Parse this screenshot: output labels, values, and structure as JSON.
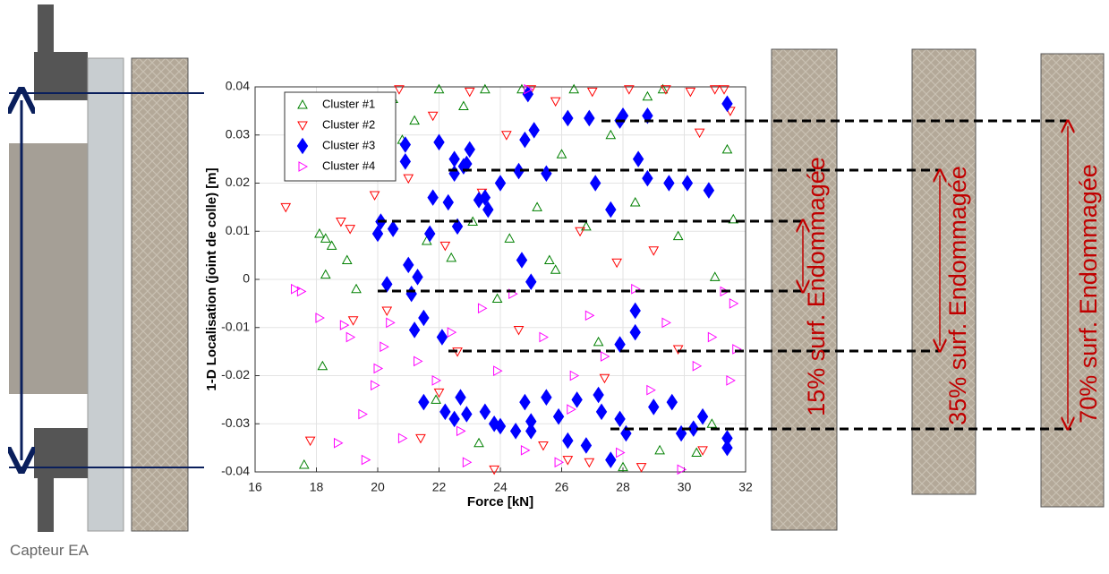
{
  "chart_data": {
    "type": "scatter",
    "x_label": "Force [kN]",
    "y_label": "1-D Localisation (joint de colle) [m]",
    "xlim": [
      16,
      32
    ],
    "xticks": [
      16,
      18,
      20,
      22,
      24,
      26,
      28,
      30,
      32
    ],
    "ylim": [
      -0.04,
      0.04
    ],
    "yticks": [
      -0.04,
      -0.03,
      -0.02,
      -0.01,
      0,
      0.01,
      0.02,
      0.03,
      0.04
    ],
    "grid": true,
    "legend": "upper left",
    "series": [
      {
        "name": "Cluster #1",
        "color": "#008000",
        "marker": "triangle-up",
        "x": [
          17.6,
          18.1,
          18.3,
          18.5,
          18.2,
          19,
          19.3,
          19.8,
          20.5,
          20.8,
          21.2,
          21.6,
          22,
          22.4,
          22.8,
          23.1,
          23.5,
          23.9,
          24.3,
          24.7,
          25.2,
          25.6,
          26,
          26.4,
          26.8,
          27.2,
          27.6,
          28,
          28.4,
          28.8,
          29.3,
          29.8,
          30.4,
          31,
          31.4,
          31.6,
          21.9,
          23.3,
          25.8,
          29.2,
          30.9,
          18.3
        ],
        "y": [
          -0.0385,
          0.0095,
          0.001,
          0.007,
          -0.018,
          0.004,
          -0.002,
          0.022,
          0.0375,
          0.029,
          0.033,
          0.008,
          0.0395,
          0.0045,
          0.036,
          0.012,
          0.0395,
          -0.004,
          0.0085,
          0.0395,
          0.015,
          0.004,
          0.026,
          0.0395,
          0.011,
          -0.013,
          0.03,
          -0.039,
          0.016,
          0.038,
          0.0395,
          0.009,
          -0.036,
          0.0005,
          0.027,
          0.0125,
          -0.025,
          -0.034,
          0.002,
          -0.0355,
          -0.03,
          0.0085
        ]
      },
      {
        "name": "Cluster #2",
        "color": "#ff0000",
        "marker": "triangle-down",
        "x": [
          17,
          17.8,
          18.8,
          19.2,
          19.5,
          19.9,
          20.3,
          20.7,
          21,
          21.4,
          21.8,
          22.2,
          22.6,
          23,
          23.4,
          23.8,
          24.2,
          24.6,
          25,
          25.4,
          25.8,
          26.2,
          26.6,
          27,
          27.4,
          27.8,
          28.2,
          28.6,
          29,
          29.4,
          29.8,
          30.2,
          30.6,
          31,
          31.3,
          31.5,
          19.1,
          22,
          26.9,
          30.5
        ],
        "y": [
          0.015,
          -0.0335,
          0.012,
          -0.0085,
          0.027,
          0.0175,
          -0.0065,
          0.0395,
          0.021,
          -0.033,
          0.034,
          0.007,
          -0.015,
          0.039,
          0.018,
          -0.0395,
          0.03,
          -0.0105,
          0.0395,
          -0.0345,
          0.037,
          -0.0375,
          0.01,
          0.039,
          -0.0205,
          0.0035,
          0.0395,
          -0.039,
          0.006,
          0.0395,
          -0.0145,
          0.039,
          -0.0355,
          0.0395,
          0.0395,
          0.035,
          0.0105,
          -0.0235,
          -0.038,
          0.0305
        ]
      },
      {
        "name": "Cluster #3",
        "color": "#0000ff",
        "marker": "diamond",
        "x": [
          20.1,
          20,
          20.5,
          20.1,
          20.9,
          20.9,
          21,
          20.3,
          21.1,
          21.3,
          21.7,
          21.5,
          21.2,
          22.1,
          21.8,
          22,
          22.5,
          22.5,
          22.8,
          23,
          22.9,
          22.3,
          22.6,
          23.3,
          23.5,
          23.6,
          24,
          24.6,
          24.8,
          25.1,
          24.9,
          25,
          24.7,
          25.5,
          26.2,
          26.9,
          27.1,
          27.6,
          27.9,
          28,
          28.5,
          28.8,
          28.8,
          29.5,
          30.1,
          30.8,
          31.4,
          27.9,
          28.4,
          28.4,
          21.5,
          22.2,
          22.5,
          22.7,
          22.9,
          23.5,
          23.8,
          24,
          24.5,
          24.8,
          25,
          25,
          25.5,
          25.9,
          26.2,
          26.5,
          26.8,
          27.2,
          27.3,
          27.6,
          27.9,
          28.1,
          29,
          29.6,
          29.9,
          30.3,
          30.6,
          31.4,
          31.4
        ],
        "y": [
          0.012,
          0.0095,
          0.0105,
          0.024,
          0.028,
          0.0245,
          0.003,
          -0.001,
          -0.003,
          0.0005,
          0.0095,
          -0.008,
          -0.0105,
          -0.012,
          0.017,
          0.0285,
          0.025,
          0.022,
          0.0235,
          0.027,
          0.024,
          0.016,
          0.011,
          0.0165,
          0.017,
          0.0145,
          0.02,
          0.0225,
          0.029,
          0.031,
          0.0385,
          -0.0005,
          0.004,
          0.022,
          0.0335,
          0.0335,
          0.02,
          0.0145,
          0.033,
          0.034,
          0.025,
          0.021,
          0.034,
          0.02,
          0.02,
          0.0185,
          0.0365,
          -0.0135,
          -0.011,
          -0.0065,
          -0.0255,
          -0.0275,
          -0.029,
          -0.0245,
          -0.028,
          -0.0275,
          -0.03,
          -0.0305,
          -0.0315,
          -0.0255,
          -0.0295,
          -0.0315,
          -0.0245,
          -0.0285,
          -0.0335,
          -0.025,
          -0.0345,
          -0.024,
          -0.0275,
          -0.0375,
          -0.029,
          -0.032,
          -0.0265,
          -0.0255,
          -0.032,
          -0.031,
          -0.0285,
          -0.033,
          -0.035
        ]
      },
      {
        "name": "Cluster #4",
        "color": "#ff00ff",
        "marker": "triangle-right",
        "x": [
          17.3,
          17.5,
          18.1,
          18.7,
          19.1,
          19.5,
          19.9,
          20.2,
          19.6,
          20.4,
          20.8,
          21.3,
          21.9,
          22.4,
          22.9,
          23.4,
          23.9,
          24.4,
          24.9,
          25.4,
          25.9,
          26.4,
          26.9,
          27.4,
          27.9,
          28.4,
          28.9,
          29.4,
          29.9,
          30.4,
          30.9,
          31.3,
          31.6,
          31.5,
          31.7,
          24.8,
          26.3,
          18.9,
          20,
          22.7
        ],
        "y": [
          -0.002,
          -0.0025,
          -0.008,
          -0.034,
          -0.012,
          -0.028,
          -0.022,
          -0.014,
          -0.0375,
          -0.009,
          -0.033,
          -0.017,
          -0.021,
          -0.011,
          -0.038,
          -0.006,
          -0.019,
          -0.003,
          0.0395,
          -0.012,
          -0.038,
          -0.02,
          -0.0075,
          -0.016,
          -0.036,
          -0.002,
          -0.023,
          -0.009,
          -0.0395,
          -0.018,
          -0.012,
          -0.0025,
          -0.005,
          -0.021,
          -0.0145,
          -0.0355,
          -0.027,
          -0.0095,
          -0.0185,
          -0.0315
        ]
      }
    ]
  },
  "sensor_label": "Capteur EA",
  "damage_labels": [
    "15% surf. Endommagée",
    "35% surf. Endommagée",
    "70% surf. Endommagée"
  ]
}
